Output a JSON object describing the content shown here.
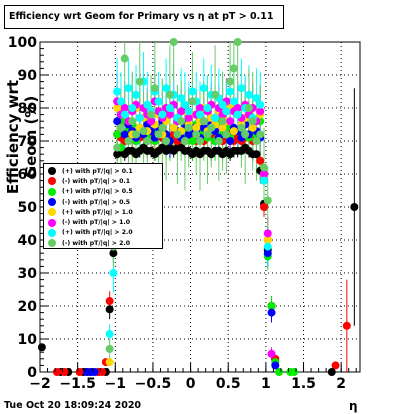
{
  "title": "Efficiency wrt Geom for Primary vs   η at pT > 0.11",
  "footer": "Tue Oct 20 18:09:24 2020",
  "chart_data": {
    "type": "scatter",
    "title": "Efficiency wrt Geom for Primary vs   η at pT > 0.11",
    "xlabel": "η",
    "ylabel": "Efficiency wrt Geom (%)",
    "xlim": [
      -2.0,
      2.25
    ],
    "ylim": [
      0,
      100
    ],
    "xticks": [
      -2,
      -1.5,
      -1,
      -0.5,
      0,
      0.5,
      1,
      1.5,
      2
    ],
    "xtick_labels": [
      "−2",
      "−1.5",
      "−1",
      "−0.5",
      "0",
      "0.5",
      "1",
      "1.5",
      "2"
    ],
    "yticks": [
      0,
      10,
      20,
      30,
      40,
      50,
      60,
      70,
      80,
      90,
      100
    ],
    "grid": true,
    "legend_position": "left-middle",
    "series": [
      {
        "name": "(+) with pT/|q| > 0.1",
        "color": "#000000",
        "x": [
          -1.975,
          -1.725,
          -1.625,
          -1.425,
          -1.325,
          -1.225,
          -1.125,
          -1.075,
          -1.025,
          -0.975,
          -0.925,
          -0.875,
          -0.825,
          -0.775,
          -0.725,
          -0.675,
          -0.625,
          -0.575,
          -0.525,
          -0.475,
          -0.425,
          -0.375,
          -0.325,
          -0.275,
          -0.225,
          -0.175,
          -0.125,
          -0.075,
          -0.025,
          0.025,
          0.075,
          0.125,
          0.175,
          0.225,
          0.275,
          0.325,
          0.375,
          0.425,
          0.475,
          0.525,
          0.575,
          0.625,
          0.675,
          0.725,
          0.775,
          0.825,
          0.875,
          0.925,
          0.975,
          1.025,
          1.075,
          1.875,
          2.175
        ],
        "y": [
          7.5,
          0,
          0,
          0,
          0,
          0,
          0,
          19,
          36,
          66,
          67,
          66,
          67,
          67,
          66,
          67,
          68,
          67,
          67,
          66,
          67,
          68,
          67,
          68,
          67,
          68,
          68,
          67,
          67,
          66,
          67,
          66,
          67,
          67,
          66,
          67,
          67,
          66,
          67,
          66,
          67,
          67,
          67,
          68,
          67,
          66,
          66,
          61,
          51,
          37,
          20,
          0,
          50
        ],
        "err": [
          0,
          0,
          0,
          0,
          0,
          0,
          0,
          3,
          3,
          2,
          2,
          2,
          2,
          2,
          2,
          2,
          2,
          2,
          2,
          2,
          2,
          2,
          2,
          2,
          2,
          2,
          2,
          2,
          2,
          2,
          2,
          2,
          2,
          2,
          2,
          2,
          2,
          2,
          2,
          2,
          2,
          2,
          2,
          2,
          2,
          2,
          2,
          3,
          3,
          3,
          3,
          0,
          36
        ]
      },
      {
        "name": "(-) with pT/|q| > 0.1",
        "color": "#ff0000",
        "x": [
          -1.775,
          -1.675,
          -1.475,
          -1.375,
          -1.225,
          -1.175,
          -1.125,
          -1.075,
          -1.025,
          -0.975,
          -0.925,
          -0.875,
          -0.825,
          -0.775,
          -0.725,
          -0.675,
          -0.625,
          -0.575,
          -0.525,
          -0.475,
          -0.425,
          -0.375,
          -0.325,
          -0.275,
          -0.225,
          -0.175,
          -0.125,
          -0.075,
          -0.025,
          0.025,
          0.075,
          0.125,
          0.175,
          0.225,
          0.275,
          0.325,
          0.375,
          0.425,
          0.475,
          0.525,
          0.575,
          0.625,
          0.675,
          0.725,
          0.775,
          0.825,
          0.875,
          0.925,
          0.975,
          1.025,
          1.075,
          1.125,
          1.925,
          2.075
        ],
        "y": [
          0,
          0,
          0,
          0,
          0,
          0,
          3,
          21.5,
          43,
          72,
          71,
          70,
          72,
          71,
          70,
          71,
          72,
          70,
          71,
          70,
          72,
          71,
          70,
          71,
          72,
          70,
          71,
          70,
          71,
          72,
          70,
          71,
          70,
          71,
          72,
          70,
          71,
          70,
          71,
          72,
          70,
          71,
          70,
          71,
          72,
          70,
          71,
          64,
          50,
          40,
          20,
          4,
          2,
          14
        ],
        "err": [
          0,
          0,
          0,
          0,
          0,
          0,
          1,
          3,
          3,
          3,
          3,
          3,
          3,
          3,
          3,
          3,
          3,
          3,
          3,
          3,
          3,
          3,
          3,
          3,
          3,
          3,
          3,
          3,
          3,
          3,
          3,
          3,
          3,
          3,
          3,
          3,
          3,
          3,
          3,
          3,
          3,
          3,
          3,
          3,
          3,
          3,
          3,
          3,
          3,
          3,
          3,
          1,
          0,
          14
        ]
      },
      {
        "name": "(+) with pT/|q| > 0.5",
        "color": "#00ee00",
        "x": [
          -1.025,
          -0.975,
          -0.925,
          -0.875,
          -0.825,
          -0.775,
          -0.725,
          -0.675,
          -0.625,
          -0.575,
          -0.525,
          -0.475,
          -0.425,
          -0.375,
          -0.325,
          -0.275,
          -0.225,
          -0.175,
          -0.125,
          -0.075,
          -0.025,
          0.025,
          0.075,
          0.125,
          0.175,
          0.225,
          0.275,
          0.325,
          0.375,
          0.425,
          0.475,
          0.525,
          0.575,
          0.625,
          0.675,
          0.725,
          0.775,
          0.825,
          0.875,
          0.925,
          0.975,
          1.025,
          1.075,
          1.125,
          1.175,
          1.325,
          1.375
        ],
        "y": [
          38,
          72,
          68,
          76,
          73,
          75,
          70,
          74,
          72,
          71,
          76,
          70,
          73,
          72,
          78,
          70,
          74,
          72,
          76,
          71,
          73,
          70,
          75,
          72,
          74,
          71,
          73,
          70,
          76,
          72,
          74,
          71,
          73,
          78,
          72,
          75,
          71,
          73,
          72,
          76,
          58,
          35,
          20,
          3,
          0,
          0,
          0
        ],
        "err": [
          4,
          6,
          5,
          6,
          5,
          6,
          5,
          6,
          5,
          6,
          5,
          6,
          5,
          6,
          5,
          6,
          5,
          6,
          5,
          6,
          5,
          6,
          5,
          6,
          5,
          6,
          5,
          6,
          5,
          6,
          5,
          6,
          5,
          6,
          5,
          6,
          5,
          6,
          5,
          6,
          5,
          4,
          3,
          1,
          0,
          0,
          0
        ]
      },
      {
        "name": "(-) with pT/|q| > 0.5",
        "color": "#0000ff",
        "x": [
          -1.375,
          -1.325,
          -1.275,
          -1.025,
          -0.975,
          -0.925,
          -0.875,
          -0.825,
          -0.775,
          -0.725,
          -0.675,
          -0.625,
          -0.575,
          -0.525,
          -0.475,
          -0.425,
          -0.375,
          -0.325,
          -0.275,
          -0.225,
          -0.175,
          -0.125,
          -0.075,
          -0.025,
          0.025,
          0.075,
          0.125,
          0.175,
          0.225,
          0.275,
          0.325,
          0.375,
          0.425,
          0.475,
          0.525,
          0.575,
          0.625,
          0.675,
          0.725,
          0.775,
          0.825,
          0.875,
          0.925,
          0.975,
          1.025,
          1.075,
          1.125
        ],
        "y": [
          0,
          0,
          0,
          38,
          76,
          74,
          72,
          75,
          73,
          71,
          74,
          72,
          75,
          73,
          71,
          74,
          76,
          72,
          70,
          74,
          73,
          71,
          75,
          72,
          74,
          73,
          71,
          74,
          72,
          75,
          73,
          71,
          74,
          72,
          70,
          74,
          73,
          71,
          75,
          72,
          74,
          73,
          71,
          58,
          36,
          18,
          2
        ],
        "err": [
          0,
          0,
          0,
          4,
          5,
          5,
          5,
          5,
          5,
          5,
          5,
          5,
          5,
          5,
          5,
          5,
          5,
          5,
          5,
          5,
          5,
          5,
          5,
          5,
          5,
          5,
          5,
          5,
          5,
          5,
          5,
          5,
          5,
          5,
          5,
          5,
          5,
          5,
          5,
          5,
          5,
          5,
          5,
          5,
          4,
          3,
          1
        ]
      },
      {
        "name": "(+) with pT/|q| > 1.0",
        "color": "#ffd700",
        "x": [
          -1.075,
          -1.025,
          -0.975,
          -0.925,
          -0.875,
          -0.825,
          -0.775,
          -0.725,
          -0.675,
          -0.625,
          -0.575,
          -0.525,
          -0.475,
          -0.425,
          -0.375,
          -0.325,
          -0.275,
          -0.225,
          -0.175,
          -0.125,
          -0.075,
          -0.025,
          0.025,
          0.075,
          0.125,
          0.175,
          0.225,
          0.275,
          0.325,
          0.375,
          0.425,
          0.475,
          0.525,
          0.575,
          0.625,
          0.675,
          0.725,
          0.775,
          0.825,
          0.875,
          0.925,
          0.975,
          1.025
        ],
        "y": [
          3,
          40,
          80,
          74,
          78,
          76,
          72,
          80,
          74,
          77,
          73,
          79,
          75,
          78,
          72,
          76,
          80,
          74,
          77,
          73,
          79,
          75,
          78,
          74,
          76,
          80,
          73,
          77,
          75,
          79,
          74,
          76,
          80,
          73,
          78,
          75,
          77,
          79,
          74,
          76,
          78,
          60,
          40
        ],
        "err": [
          1,
          5,
          8,
          7,
          8,
          7,
          8,
          7,
          8,
          7,
          8,
          7,
          8,
          7,
          8,
          7,
          8,
          7,
          8,
          7,
          8,
          7,
          8,
          7,
          8,
          7,
          8,
          7,
          8,
          7,
          8,
          7,
          8,
          7,
          8,
          7,
          8,
          7,
          8,
          7,
          8,
          7,
          5
        ]
      },
      {
        "name": "(-) with pT/|q| > 1.0",
        "color": "#ff00ff",
        "x": [
          -1.025,
          -0.975,
          -0.925,
          -0.875,
          -0.825,
          -0.775,
          -0.725,
          -0.675,
          -0.625,
          -0.575,
          -0.525,
          -0.475,
          -0.425,
          -0.375,
          -0.325,
          -0.275,
          -0.225,
          -0.175,
          -0.125,
          -0.075,
          -0.025,
          0.025,
          0.075,
          0.125,
          0.175,
          0.225,
          0.275,
          0.325,
          0.375,
          0.425,
          0.475,
          0.525,
          0.575,
          0.625,
          0.675,
          0.725,
          0.775,
          0.825,
          0.875,
          0.925,
          0.975,
          1.025,
          1.075
        ],
        "y": [
          42,
          82,
          78,
          80,
          76,
          79,
          81,
          77,
          80,
          78,
          76,
          82,
          79,
          77,
          80,
          78,
          81,
          76,
          79,
          80,
          77,
          82,
          78,
          80,
          76,
          79,
          81,
          77,
          80,
          78,
          82,
          76,
          79,
          80,
          77,
          81,
          78,
          80,
          76,
          79,
          60,
          42,
          5.5
        ],
        "err": [
          5,
          8,
          7,
          8,
          7,
          8,
          7,
          8,
          7,
          8,
          7,
          8,
          7,
          8,
          7,
          8,
          7,
          8,
          7,
          8,
          7,
          8,
          7,
          8,
          7,
          8,
          7,
          8,
          7,
          8,
          7,
          8,
          7,
          8,
          7,
          8,
          7,
          8,
          7,
          8,
          7,
          5,
          2
        ]
      },
      {
        "name": "(+) with pT/|q| > 2.0",
        "color": "#00ffff",
        "x": [
          -1.075,
          -1.025,
          -0.975,
          -0.925,
          -0.875,
          -0.825,
          -0.775,
          -0.725,
          -0.675,
          -0.625,
          -0.575,
          -0.525,
          -0.475,
          -0.425,
          -0.375,
          -0.325,
          -0.275,
          -0.225,
          -0.175,
          -0.125,
          -0.075,
          -0.025,
          0.025,
          0.075,
          0.125,
          0.175,
          0.225,
          0.275,
          0.325,
          0.375,
          0.425,
          0.475,
          0.525,
          0.575,
          0.625,
          0.675,
          0.725,
          0.775,
          0.825,
          0.875,
          0.925,
          0.975,
          1.025
        ],
        "y": [
          11.5,
          30,
          85,
          82,
          78,
          86,
          80,
          84,
          77,
          88,
          81,
          79,
          85,
          82,
          78,
          86,
          80,
          84,
          77,
          83,
          81,
          79,
          85,
          82,
          78,
          86,
          80,
          84,
          77,
          83,
          81,
          79,
          85,
          82,
          78,
          86,
          80,
          84,
          77,
          83,
          81,
          58,
          38
        ],
        "err": [
          3,
          6,
          10,
          9,
          10,
          9,
          10,
          9,
          10,
          9,
          10,
          9,
          10,
          9,
          10,
          9,
          10,
          9,
          10,
          9,
          10,
          9,
          10,
          9,
          10,
          9,
          10,
          9,
          10,
          9,
          10,
          9,
          10,
          9,
          10,
          9,
          10,
          9,
          10,
          9,
          10,
          8,
          6
        ]
      },
      {
        "name": "(-) with pT/|q| > 2.0",
        "color": "#66cc66",
        "x": [
          -1.075,
          -1.025,
          -0.975,
          -0.925,
          -0.875,
          -0.825,
          -0.775,
          -0.725,
          -0.675,
          -0.625,
          -0.575,
          -0.525,
          -0.475,
          -0.425,
          -0.375,
          -0.325,
          -0.275,
          -0.225,
          -0.175,
          -0.125,
          -0.075,
          -0.025,
          0.025,
          0.075,
          0.125,
          0.175,
          0.225,
          0.275,
          0.325,
          0.375,
          0.425,
          0.475,
          0.525,
          0.575,
          0.625,
          0.675,
          0.725,
          0.775,
          0.825,
          0.875,
          0.925,
          0.975,
          1.025
        ],
        "y": [
          7,
          38,
          68,
          74,
          95,
          70,
          76,
          72,
          88,
          73,
          70,
          78,
          86,
          72,
          74,
          70,
          84,
          100,
          72,
          76,
          70,
          74,
          82,
          72,
          70,
          76,
          72,
          74,
          84,
          70,
          76,
          72,
          88,
          92,
          100,
          74,
          72,
          80,
          76,
          70,
          72,
          62,
          52
        ],
        "err": [
          3,
          6,
          15,
          12,
          15,
          12,
          15,
          12,
          15,
          12,
          15,
          12,
          15,
          12,
          15,
          12,
          15,
          12,
          15,
          12,
          15,
          12,
          15,
          12,
          15,
          12,
          15,
          12,
          15,
          12,
          15,
          12,
          15,
          12,
          15,
          12,
          15,
          12,
          15,
          12,
          15,
          12,
          10
        ]
      }
    ]
  }
}
